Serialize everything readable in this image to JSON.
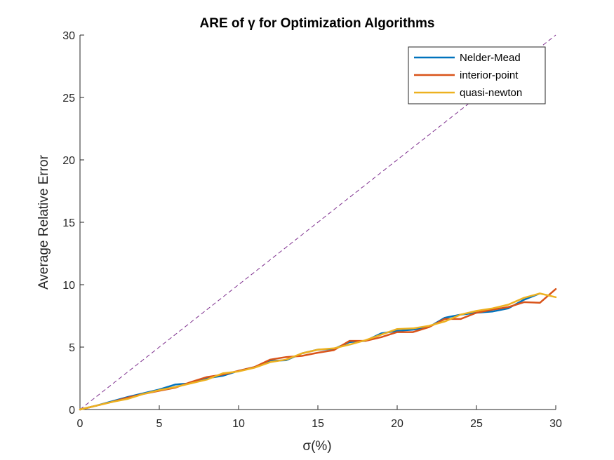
{
  "chart_data": {
    "type": "line",
    "title": "ARE of γ for Optimization Algorithms",
    "xlabel": "σ(%)",
    "ylabel": "Average Relative Error",
    "xlim": [
      0,
      30
    ],
    "ylim": [
      0,
      30
    ],
    "xticks": [
      0,
      5,
      10,
      15,
      20,
      25,
      30
    ],
    "yticks": [
      0,
      5,
      10,
      15,
      20,
      25,
      30
    ],
    "grid": false,
    "legend_position": "top-right",
    "reference_line": {
      "style": "dashed",
      "color": "#7E2F8E",
      "x": [
        0,
        30
      ],
      "y": [
        0,
        30
      ]
    },
    "x": [
      0,
      1,
      2,
      3,
      4,
      5,
      6,
      7,
      8,
      9,
      10,
      11,
      12,
      13,
      14,
      15,
      16,
      17,
      18,
      19,
      20,
      21,
      22,
      23,
      24,
      25,
      26,
      27,
      28,
      29,
      30
    ],
    "series": [
      {
        "name": "Nelder-Mead",
        "color": "#0072BD",
        "values": [
          0,
          0.3,
          0.65,
          1.0,
          1.3,
          1.6,
          2.0,
          2.1,
          2.5,
          2.7,
          3.1,
          3.4,
          3.9,
          3.95,
          4.5,
          4.8,
          4.85,
          5.4,
          5.5,
          6.1,
          6.3,
          6.4,
          6.6,
          7.35,
          7.6,
          7.75,
          7.85,
          8.1,
          8.8,
          9.3,
          null
        ]
      },
      {
        "name": "interior-point",
        "color": "#D95319",
        "values": [
          0,
          0.3,
          0.6,
          0.95,
          1.25,
          1.5,
          1.75,
          2.2,
          2.6,
          2.8,
          3.1,
          3.4,
          4.0,
          4.2,
          4.3,
          4.55,
          4.75,
          5.5,
          5.5,
          5.8,
          6.2,
          6.2,
          6.6,
          7.25,
          7.25,
          7.75,
          8.0,
          8.2,
          8.6,
          8.55,
          9.65
        ]
      },
      {
        "name": "quasi-newton",
        "color": "#EDB120",
        "values": [
          0,
          0.3,
          0.6,
          0.85,
          1.25,
          1.55,
          1.8,
          2.1,
          2.4,
          2.9,
          3.05,
          3.35,
          3.8,
          4.0,
          4.5,
          4.8,
          4.9,
          5.2,
          5.55,
          6.0,
          6.45,
          6.5,
          6.7,
          7.05,
          7.6,
          7.9,
          8.1,
          8.4,
          8.95,
          9.3,
          9.0
        ]
      }
    ]
  }
}
